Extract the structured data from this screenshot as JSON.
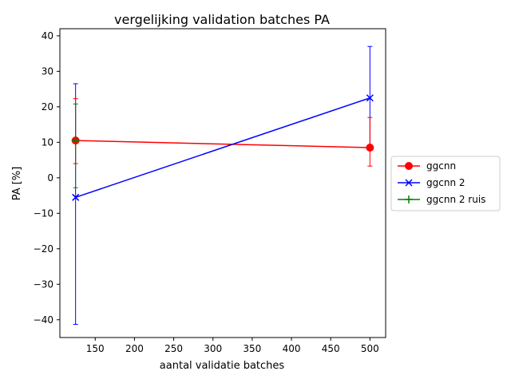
{
  "chart_data": {
    "type": "line",
    "title": "vergelijking validation batches PA",
    "xlabel": "aantal validatie batches",
    "ylabel": "PA [%]",
    "xlim": [
      105,
      520
    ],
    "ylim": [
      -45,
      42
    ],
    "xticks": [
      150,
      200,
      250,
      300,
      350,
      400,
      450,
      500
    ],
    "yticks": [
      -40,
      -30,
      -20,
      -10,
      0,
      10,
      20,
      30,
      40
    ],
    "xtick_labels": [
      "150",
      "200",
      "250",
      "300",
      "350",
      "400",
      "450",
      "500"
    ],
    "ytick_labels": [
      "−40",
      "−30",
      "−20",
      "−10",
      "0",
      "10",
      "20",
      "30",
      "40"
    ],
    "grid": false,
    "legend_position": "outside-right",
    "series": [
      {
        "name": "ggcnn",
        "color": "#ff0000",
        "marker": "circle",
        "x": [
          125,
          500
        ],
        "y": [
          10.5,
          8.5
        ],
        "err_low": [
          4.0,
          3.3
        ],
        "err_high": [
          22.3,
          17.0
        ]
      },
      {
        "name": "ggcnn 2",
        "color": "#0000ff",
        "marker": "x",
        "x": [
          125,
          500
        ],
        "y": [
          -5.5,
          22.5
        ],
        "err_low": [
          -41.3,
          8.0
        ],
        "err_high": [
          26.5,
          37.0
        ]
      },
      {
        "name": "ggcnn 2 ruis",
        "color": "#008000",
        "marker": "plus",
        "x": [
          125
        ],
        "y": [
          10.5
        ],
        "err_low": [
          -2.8
        ],
        "err_high": [
          20.8
        ]
      }
    ]
  }
}
